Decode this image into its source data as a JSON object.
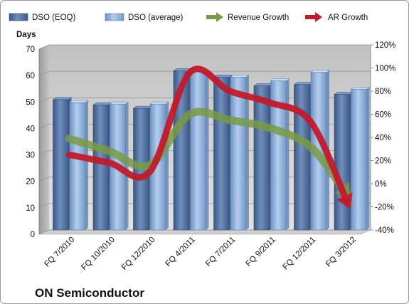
{
  "chart_data": {
    "type": "bar",
    "title": "ON Semiconductor",
    "ylabel_left": "Days",
    "categories": [
      "FQ 7/2010",
      "FQ 10/2010",
      "FQ 12/2010",
      "FQ 4/2011",
      "FQ 7/2011",
      "FQ 9/2011",
      "FQ 12/2011",
      "FQ 3/2012"
    ],
    "ylim_left": [
      0,
      70
    ],
    "yticks_left": [
      "0",
      "10",
      "20",
      "30",
      "40",
      "50",
      "60",
      "70"
    ],
    "ylim_right": [
      -40,
      120
    ],
    "yticks_right": [
      "-40%",
      "-20%",
      "0%",
      "20%",
      "40%",
      "60%",
      "80%",
      "100%",
      "120%"
    ],
    "grid": true,
    "legend_position": "top",
    "series": [
      {
        "name": "DSO (EOQ)",
        "type": "bar",
        "axis": "left",
        "color": "#4e6f9e",
        "values": [
          49.3,
          47.3,
          46.0,
          60.2,
          57.8,
          54.5,
          55.0,
          51.3
        ]
      },
      {
        "name": "DSO (average)",
        "type": "bar",
        "axis": "left",
        "color": "#8fb1dc",
        "values": [
          48.2,
          47.6,
          47.6,
          59.8,
          57.8,
          56.4,
          59.6,
          53.2
        ]
      },
      {
        "name": "Revenue Growth",
        "type": "line",
        "axis": "right",
        "color": "#7a9a45",
        "values": [
          39,
          28,
          16,
          60,
          55,
          48,
          32,
          -13
        ]
      },
      {
        "name": "AR Growth",
        "type": "line",
        "axis": "right",
        "color": "#c21a2b",
        "values": [
          25,
          18,
          10,
          96,
          80,
          70,
          54,
          -22
        ]
      }
    ]
  }
}
